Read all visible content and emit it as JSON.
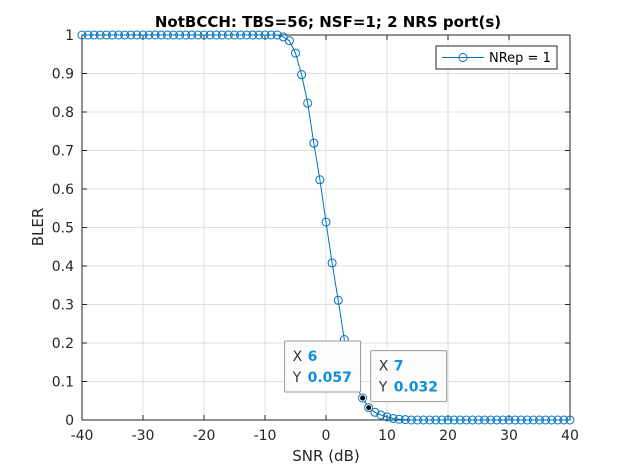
{
  "chart_data": {
    "type": "line",
    "title": "NotBCCH: TBS=56; NSF=1; 2 NRS port(s)",
    "xlabel": "SNR (dB)",
    "ylabel": "BLER",
    "xlim": [
      -40,
      40
    ],
    "ylim": [
      0,
      1
    ],
    "xticks": [
      "-40",
      "-30",
      "-20",
      "-10",
      "0",
      "10",
      "20",
      "30",
      "40"
    ],
    "yticks": [
      "0",
      "0.1",
      "0.2",
      "0.3",
      "0.4",
      "0.5",
      "0.6",
      "0.7",
      "0.8",
      "0.9",
      "1"
    ],
    "grid": true,
    "legend_position": "top-right",
    "color": "#0072bd",
    "series": [
      {
        "name": "NRep = 1",
        "marker": "circle",
        "x": [
          -40,
          -39,
          -38,
          -37,
          -36,
          -35,
          -34,
          -33,
          -32,
          -31,
          -30,
          -29,
          -28,
          -27,
          -26,
          -25,
          -24,
          -23,
          -22,
          -21,
          -20,
          -19,
          -18,
          -17,
          -16,
          -15,
          -14,
          -13,
          -12,
          -11,
          -10,
          -9,
          -8,
          -7,
          -6,
          -5,
          -4,
          -3,
          -2,
          -1,
          0,
          1,
          2,
          3,
          4,
          5,
          6,
          7,
          8,
          9,
          10,
          11,
          12,
          13,
          14,
          15,
          16,
          17,
          18,
          19,
          20,
          21,
          22,
          23,
          24,
          25,
          26,
          27,
          28,
          29,
          30,
          31,
          32,
          33,
          34,
          35,
          36,
          37,
          38,
          39,
          40
        ],
        "y": [
          1,
          1,
          1,
          1,
          1,
          1,
          1,
          1,
          1,
          1,
          1,
          1,
          1,
          1,
          1,
          1,
          1,
          1,
          1,
          1,
          1,
          1,
          1,
          1,
          1,
          1,
          1,
          1,
          1,
          1,
          1,
          1,
          1,
          0.995,
          0.985,
          0.953,
          0.897,
          0.823,
          0.719,
          0.624,
          0.514,
          0.408,
          0.311,
          0.209,
          0.131,
          0.085,
          0.057,
          0.032,
          0.02,
          0.013,
          0.008,
          0.004,
          0.002,
          0.001,
          0,
          0,
          0,
          0,
          0,
          0,
          0,
          0,
          0,
          0,
          0,
          0,
          0,
          0,
          0,
          0,
          0,
          0,
          0,
          0,
          0,
          0,
          0,
          0,
          0,
          0,
          0
        ]
      }
    ],
    "datatips": [
      {
        "x_label": "X",
        "x": "6",
        "y_label": "Y",
        "y": "0.057"
      },
      {
        "x_label": "X",
        "x": "7",
        "y_label": "Y",
        "y": "0.032"
      }
    ]
  }
}
